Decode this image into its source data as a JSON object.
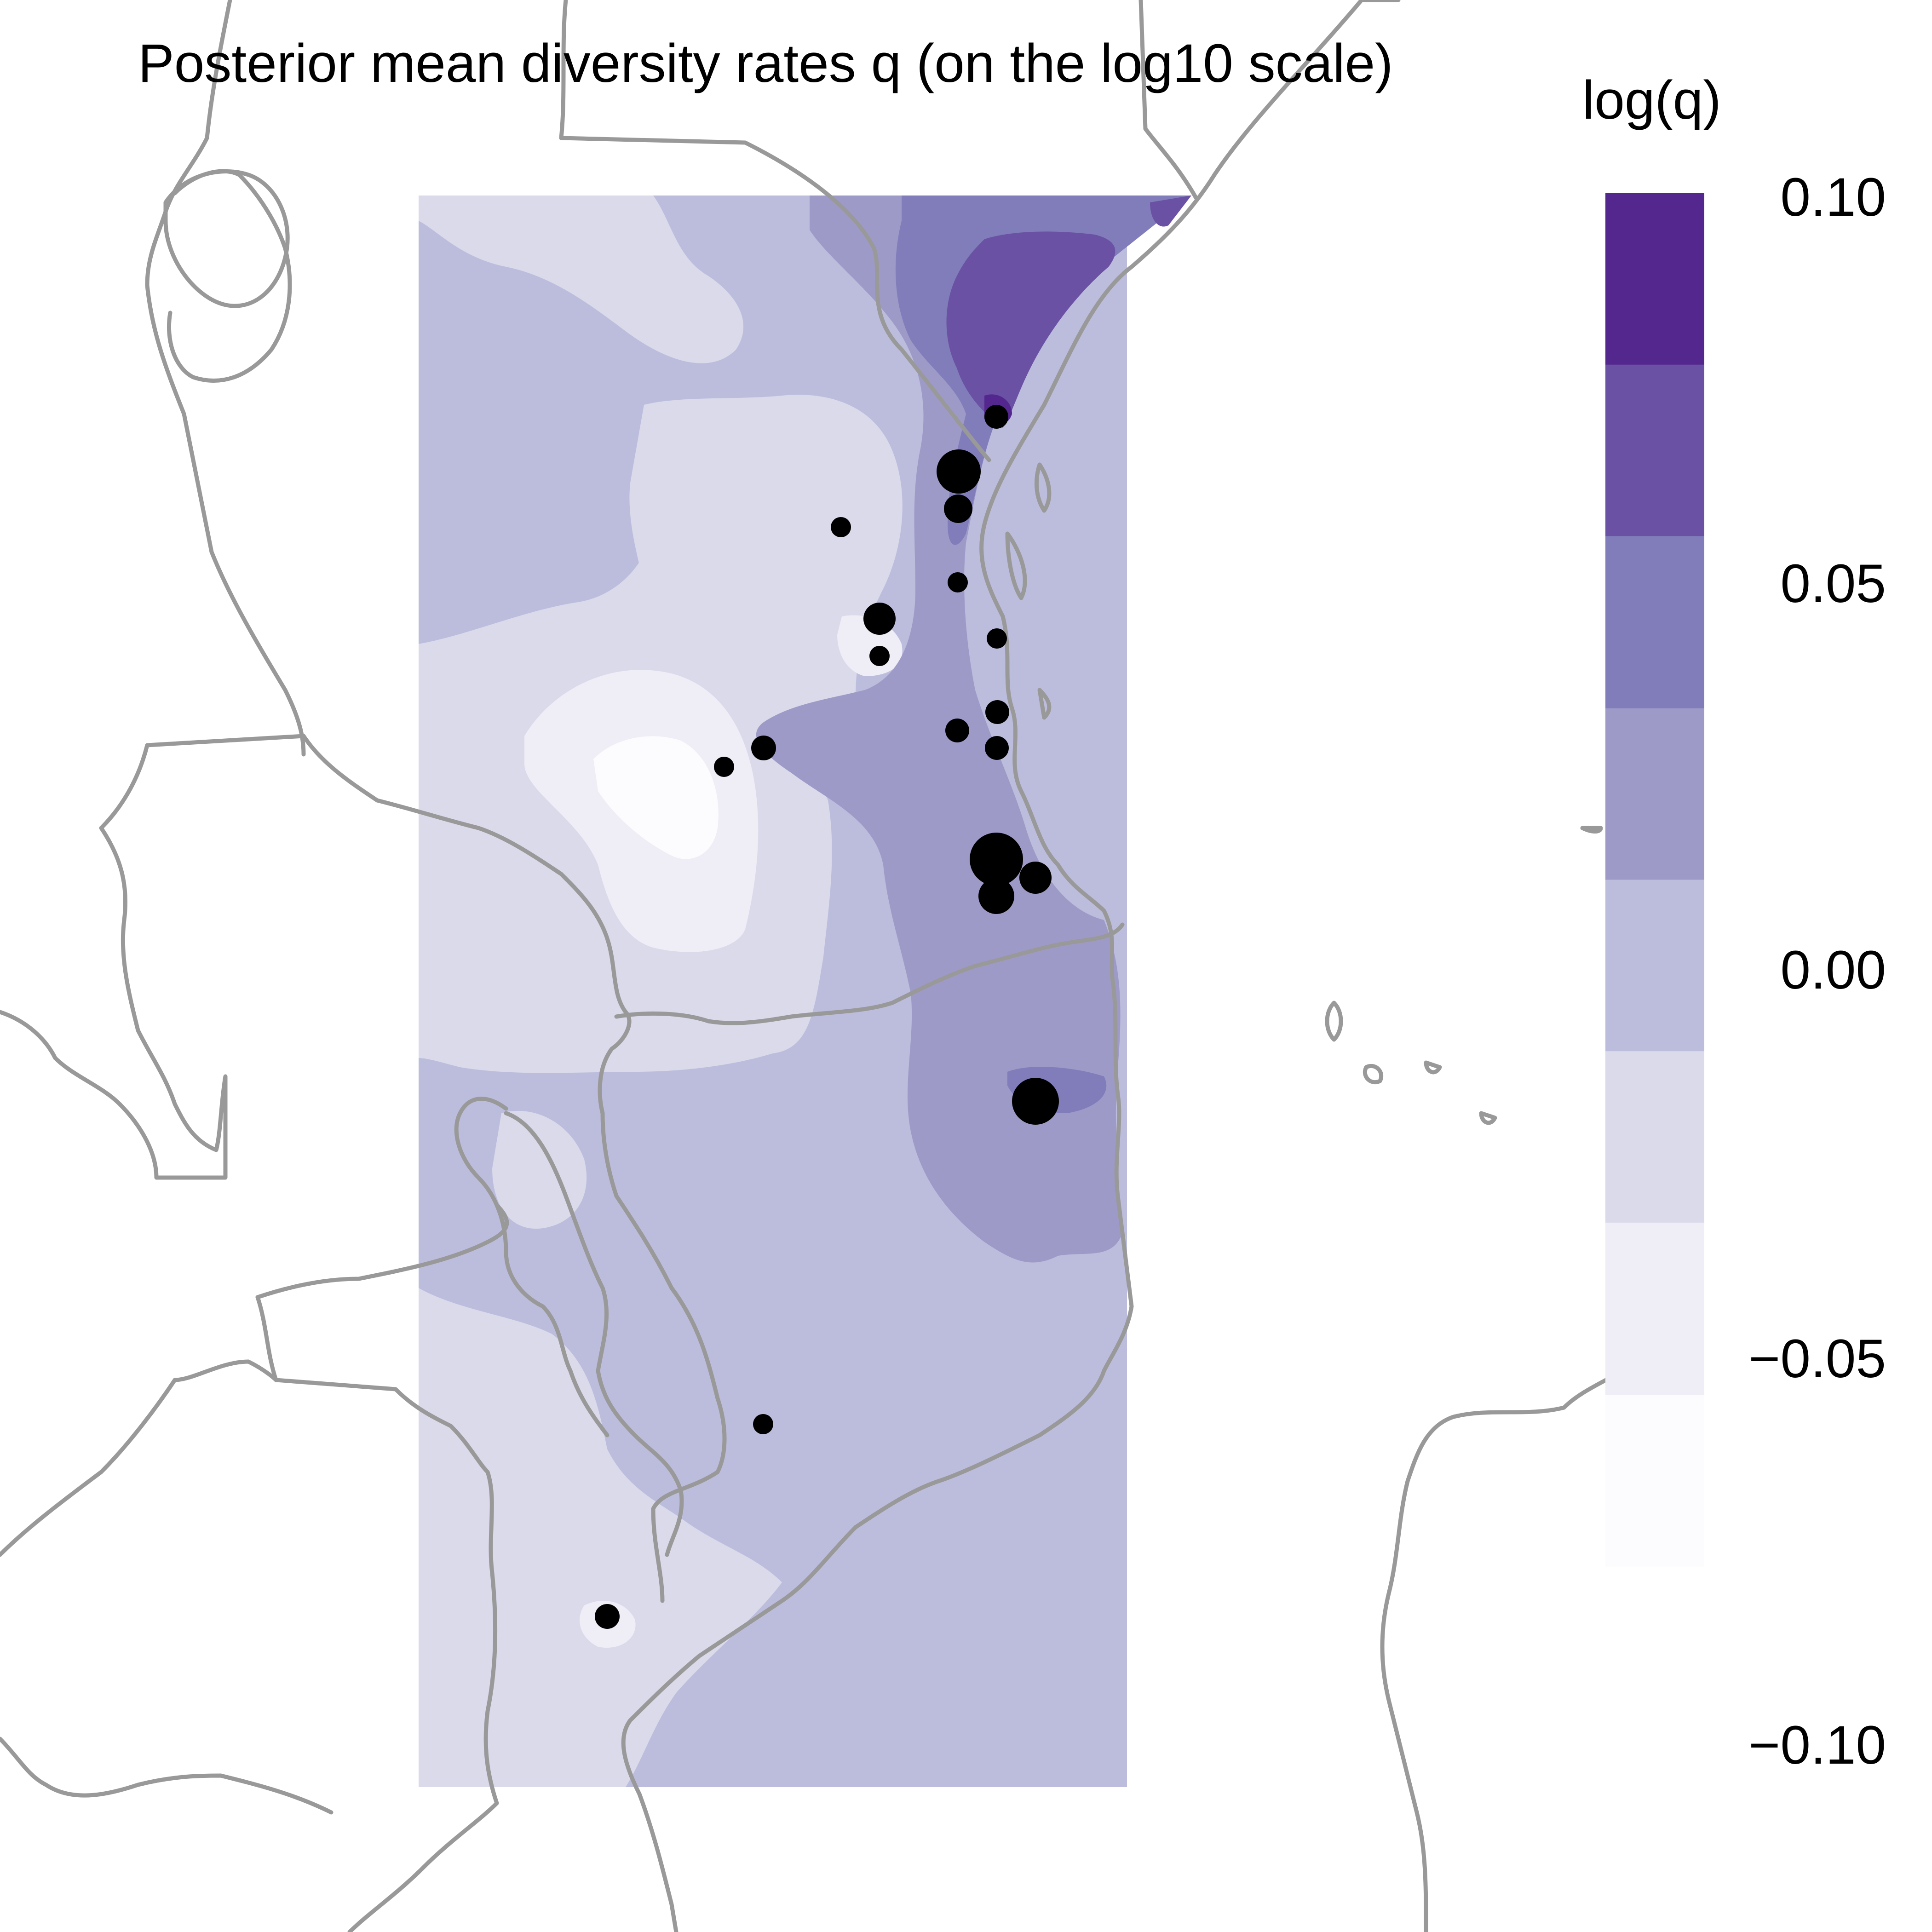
{
  "title": "Posterior mean diversity rates q (on the log10 scale)",
  "legend": {
    "title": "log(q)",
    "ticks": [
      "0.10",
      "0.05",
      "0.00",
      "−0.05",
      "−0.10"
    ],
    "bins": [
      {
        "upper": 0.1,
        "lower": 0.0778,
        "color": "#54278f"
      },
      {
        "upper": 0.0778,
        "lower": 0.0556,
        "color": "#6a51a3"
      },
      {
        "upper": 0.0556,
        "lower": 0.0333,
        "color": "#807dba"
      },
      {
        "upper": 0.0333,
        "lower": 0.0111,
        "color": "#9e9ac8"
      },
      {
        "upper": 0.0111,
        "lower": -0.0111,
        "color": "#bcbddc"
      },
      {
        "upper": -0.0111,
        "lower": -0.0333,
        "color": "#dadaeb"
      },
      {
        "upper": -0.0333,
        "lower": -0.0556,
        "color": "#efedf5"
      },
      {
        "upper": -0.0556,
        "lower": -0.0778,
        "color": "#fcfbfd"
      }
    ]
  },
  "colors": {
    "border": "#999999",
    "point": "#000000"
  },
  "chart_data": {
    "type": "heatmap",
    "title": "Posterior mean diversity rates q (on the log10 scale)",
    "colorbar_label": "log(q)",
    "colorbar_range": [
      -0.1,
      0.1
    ],
    "colorbar_ticks": [
      0.1,
      0.05,
      0.0,
      -0.05,
      -0.1
    ],
    "sampling_points_count": 22
  }
}
